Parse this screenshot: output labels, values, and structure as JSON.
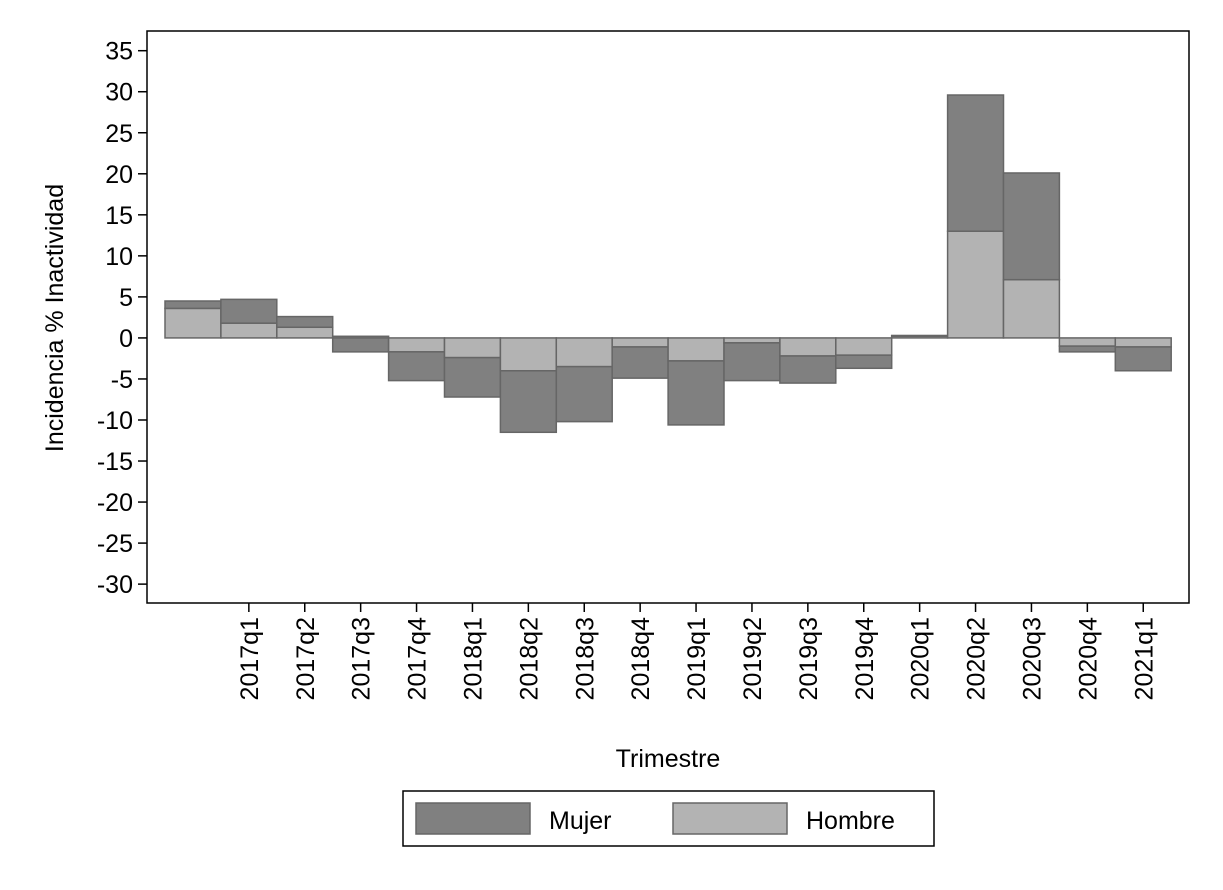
{
  "chart_data": {
    "type": "bar",
    "stacked": true,
    "xlabel": "Trimestre",
    "ylabel": "Incidencia % Inactividad",
    "categories": [
      null,
      "2017q1",
      "2017q2",
      "2017q3",
      "2017q4",
      "2018q1",
      "2018q2",
      "2018q3",
      "2018q4",
      "2019q1",
      "2019q2",
      "2019q3",
      "2019q4",
      "2020q1",
      "2020q2",
      "2020q3",
      "2020q4",
      "2021q1"
    ],
    "series": [
      {
        "name": "Mujer",
        "color": "#808080",
        "values": [
          0.9,
          2.9,
          1.3,
          -1.7,
          -3.5,
          -4.8,
          -7.5,
          -6.7,
          -3.8,
          -7.8,
          -4.6,
          -3.3,
          -1.6,
          0.1,
          16.6,
          13.0,
          -0.7,
          -2.9
        ]
      },
      {
        "name": "Hombre",
        "color": "#b3b3b3",
        "values": [
          3.6,
          1.8,
          1.3,
          0.2,
          -1.7,
          -2.4,
          -4.0,
          -3.5,
          -1.1,
          -2.8,
          -0.6,
          -2.2,
          -2.1,
          0.2,
          13.0,
          7.1,
          -1.0,
          -1.1
        ]
      }
    ],
    "ylim": [
      -32.3,
      37.4
    ],
    "yticks": [
      -30,
      -25,
      -20,
      -15,
      -10,
      -5,
      0,
      5,
      10,
      15,
      20,
      25,
      30,
      35
    ],
    "legend": "bottom"
  }
}
